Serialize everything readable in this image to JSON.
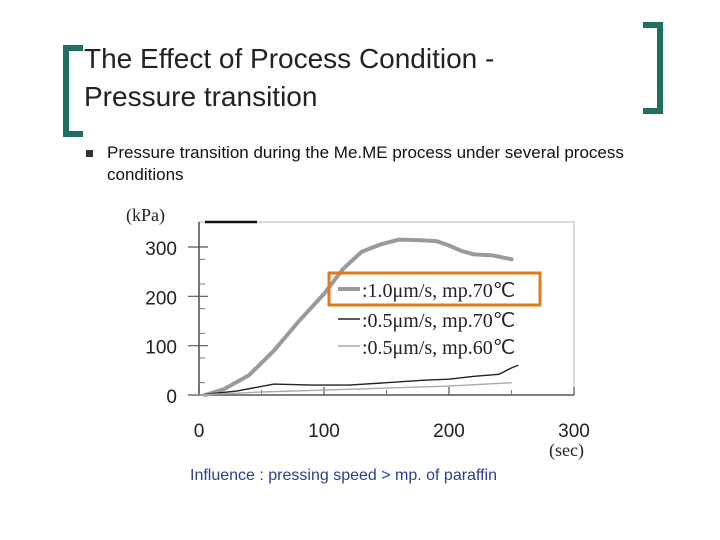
{
  "title": {
    "line1": "The Effect of Process Condition -",
    "line2": "Pressure transition"
  },
  "bullet": "Pressure transition during the Me.ME process under several process conditions",
  "footer_note": "Influence : pressing speed > mp. of paraffin",
  "colors": {
    "accent": "#1f6e63",
    "highlight": "#e07a1a",
    "note": "#2d3d8f"
  },
  "chart_data": {
    "type": "line",
    "y_unit": "(kPa)",
    "x_unit": "(sec)",
    "xlim": [
      0,
      300
    ],
    "ylim": [
      0,
      300
    ],
    "x_ticks": [
      0,
      100,
      200,
      300
    ],
    "y_ticks": [
      0,
      100,
      200,
      300
    ],
    "legend_placement": "center-right",
    "series": [
      {
        "name": ":1.0μm/s, mp.70℃",
        "color": "#9a9a9a",
        "width": 4,
        "highlighted": true,
        "points": [
          [
            5,
            0
          ],
          [
            20,
            12
          ],
          [
            40,
            40
          ],
          [
            60,
            90
          ],
          [
            80,
            150
          ],
          [
            100,
            205
          ],
          [
            115,
            255
          ],
          [
            130,
            290
          ],
          [
            145,
            305
          ],
          [
            160,
            315
          ],
          [
            175,
            314
          ],
          [
            190,
            312
          ],
          [
            200,
            303
          ],
          [
            210,
            292
          ],
          [
            220,
            285
          ],
          [
            235,
            283
          ],
          [
            250,
            275
          ]
        ]
      },
      {
        "name": ":0.5μm/s, mp.70℃",
        "color": "#222222",
        "width": 1.4,
        "highlighted": false,
        "points": [
          [
            0,
            0
          ],
          [
            30,
            8
          ],
          [
            60,
            22
          ],
          [
            90,
            20
          ],
          [
            120,
            20
          ],
          [
            150,
            25
          ],
          [
            180,
            30
          ],
          [
            200,
            32
          ],
          [
            220,
            38
          ],
          [
            240,
            42
          ],
          [
            250,
            55
          ],
          [
            255,
            60
          ]
        ]
      },
      {
        "name": ":0.5μm/s, mp.60℃",
        "color": "#aaaaaa",
        "width": 1.4,
        "highlighted": false,
        "points": [
          [
            0,
            0
          ],
          [
            50,
            6
          ],
          [
            100,
            10
          ],
          [
            150,
            14
          ],
          [
            200,
            18
          ],
          [
            230,
            22
          ],
          [
            250,
            25
          ]
        ]
      }
    ]
  }
}
